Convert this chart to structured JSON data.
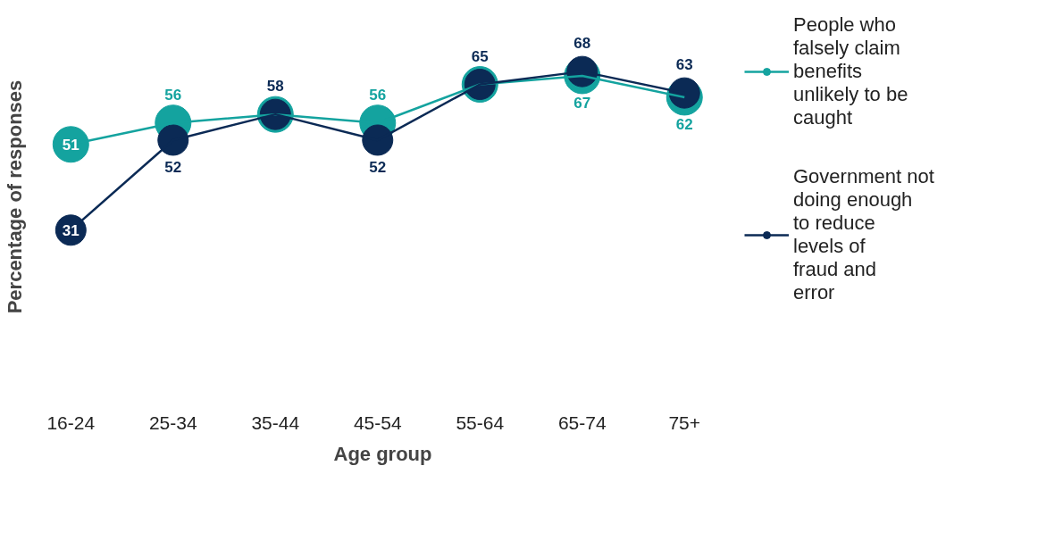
{
  "chart_data": {
    "type": "line",
    "relative": false,
    "xlabel": "Age group",
    "ylabel": "Percentage of responses",
    "categories": [
      "16-24",
      "25-34",
      "35-44",
      "45-54",
      "55-64",
      "65-74",
      "75+"
    ],
    "series": [
      {
        "name": "People who falsely claim benefits unlikely to be caught",
        "color": "#14a39f",
        "values": [
          51,
          56,
          58,
          56,
          65,
          67,
          62
        ],
        "value_labels": [
          "51",
          "56",
          null,
          "56",
          null,
          "67",
          "62"
        ]
      },
      {
        "name": "Government not doing enough to reduce levels of fraud and error",
        "color": "#0b2a55",
        "values": [
          31,
          52,
          58,
          52,
          65,
          68,
          63
        ],
        "value_labels": [
          "31",
          "52",
          "58",
          "52",
          "65",
          "68",
          "63"
        ]
      }
    ],
    "marker": "circle",
    "line_style": "solid",
    "grid": false,
    "legend": "right"
  }
}
